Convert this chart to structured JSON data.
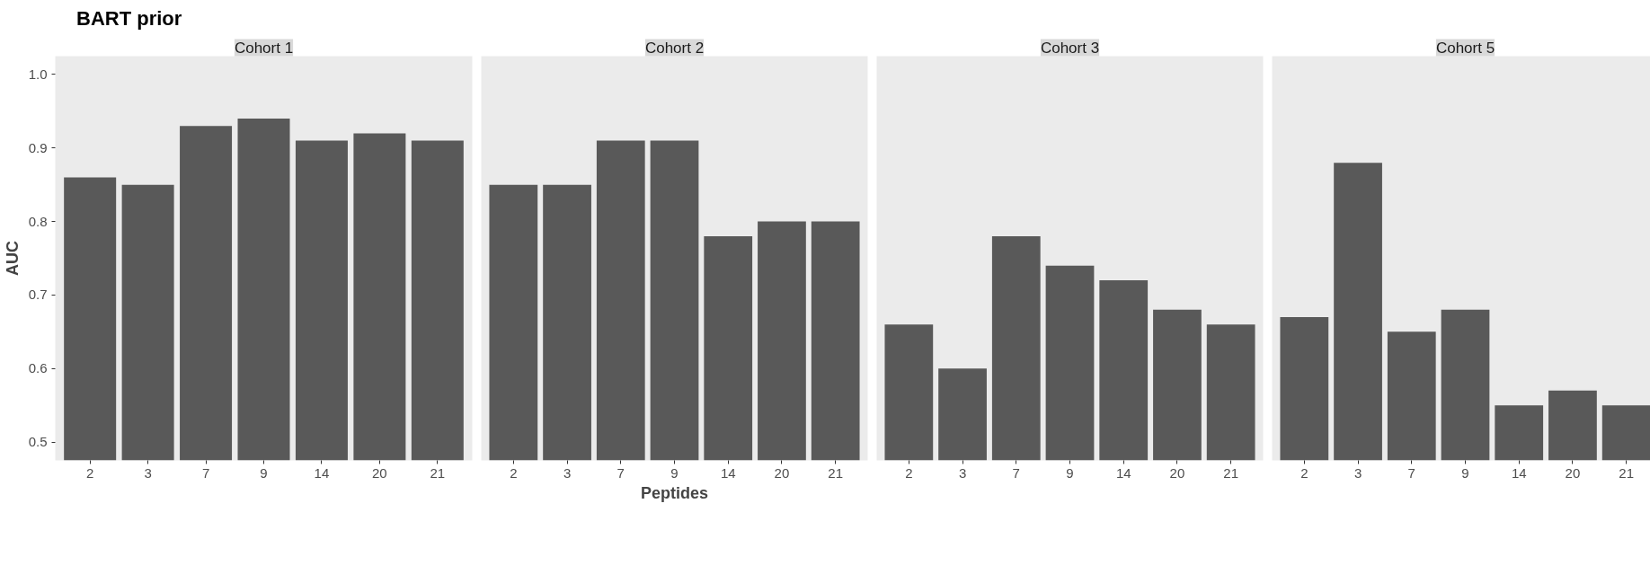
{
  "chart_data": [
    {
      "type": "bar",
      "title": "BART prior",
      "subtitle": "Cohort 1",
      "ylabel": "AUC",
      "categories": [
        "2",
        "3",
        "7",
        "9",
        "14",
        "20",
        "21"
      ],
      "values": [
        0.86,
        0.85,
        0.93,
        0.94,
        0.91,
        0.92,
        0.91
      ],
      "color": "#595959",
      "ylim": [
        0.475,
        1.025
      ],
      "yticks": [
        0.5,
        0.6,
        0.7,
        0.8,
        0.9,
        {
          "value": 1.0,
          "label": "1.0"
        }
      ],
      "grid": false
    },
    {
      "type": "bar",
      "subtitle": "Cohort 2",
      "xlabel": "Peptides",
      "categories": [
        "2",
        "3",
        "7",
        "9",
        "14",
        "20",
        "21"
      ],
      "values": [
        0.85,
        0.85,
        0.91,
        0.91,
        0.78,
        0.8,
        0.8
      ],
      "color": "#595959",
      "ylim": [
        0.475,
        1.025
      ],
      "grid": false,
      "tick_labels": "x"
    },
    {
      "type": "bar",
      "subtitle": "Cohort 3",
      "categories": [
        "2",
        "3",
        "7",
        "9",
        "14",
        "20",
        "21"
      ],
      "values": [
        0.66,
        0.6,
        0.78,
        0.74,
        0.72,
        0.68,
        0.66
      ],
      "color": "#595959",
      "ylim": [
        0.475,
        1.025
      ],
      "grid": false,
      "tick_labels": "x"
    },
    {
      "type": "bar",
      "subtitle": "Cohort 5",
      "categories": [
        "2",
        "3",
        "7",
        "9",
        "14",
        "20",
        "21"
      ],
      "values": [
        0.67,
        0.88,
        0.65,
        0.68,
        0.55,
        0.57,
        0.55
      ],
      "color": "#595959",
      "ylim": [
        0.475,
        1.025
      ],
      "grid": false,
      "tick_labels": "x"
    }
  ]
}
